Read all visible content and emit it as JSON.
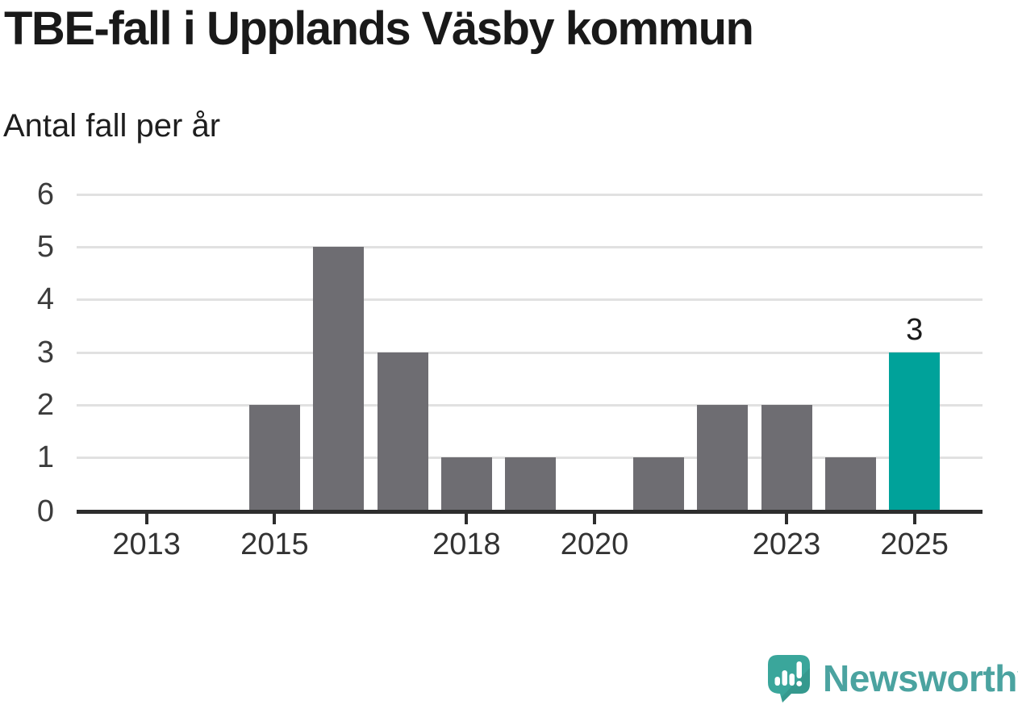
{
  "title": "TBE-fall i Upplands Väsby kommun",
  "subtitle": "Antal fall per år",
  "chart_data": {
    "type": "bar",
    "title": "TBE-fall i Upplands Väsby kommun",
    "subtitle": "Antal fall per år",
    "xlabel": "",
    "ylabel": "Antal fall per år",
    "categories": [
      "2013",
      "2014",
      "2015",
      "2016",
      "2017",
      "2018",
      "2019",
      "2020",
      "2021",
      "2022",
      "2023",
      "2024",
      "2025"
    ],
    "values": [
      0,
      0,
      2,
      5,
      3,
      1,
      1,
      0,
      1,
      2,
      2,
      1,
      3
    ],
    "highlight_category": "2025",
    "highlight_value_label": "3",
    "x_tick_labels": [
      "2013",
      "2015",
      "2018",
      "2020",
      "2023",
      "2025"
    ],
    "y_tick_labels": [
      "0",
      "1",
      "2",
      "3",
      "4",
      "5",
      "6"
    ],
    "ylim": [
      0,
      6
    ],
    "grid": "horizontal",
    "legend": "none",
    "bar_color": "#6e6d72",
    "highlight_color": "#00a29a",
    "gridline_color": "#e1e1e1",
    "axis_color": "#2d2d2d"
  },
  "branding": {
    "logo_text": "Newsworthy",
    "logo_icon": "newsworthy-speech-bubble-bar-chart-icon",
    "logo_text_color": "#4ba3a0",
    "logo_icon_color": "#3aa69b"
  }
}
